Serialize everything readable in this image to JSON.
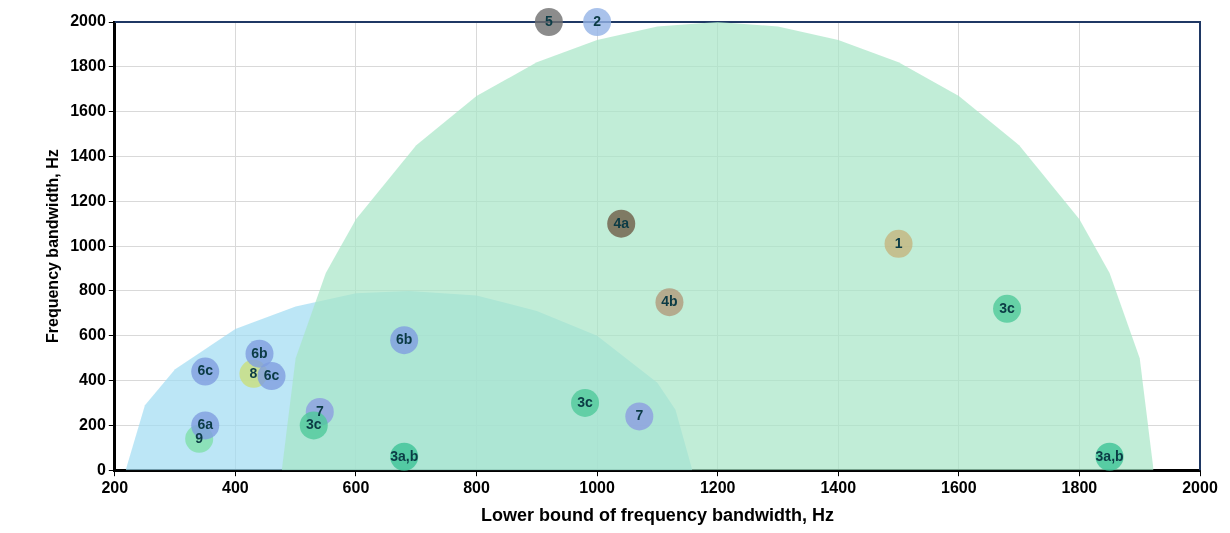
{
  "chart_data": {
    "type": "bubble",
    "xlabel": "Lower bound of frequency bandwidth, Hz",
    "ylabel": "Frequency bandwidth, Hz",
    "xlim": [
      200,
      2000
    ],
    "xticks": [
      200,
      400,
      600,
      800,
      1000,
      1200,
      1400,
      1600,
      1800,
      2000
    ],
    "ylim": [
      0,
      2000
    ],
    "yticks": [
      0,
      200,
      400,
      600,
      800,
      1000,
      1200,
      1400,
      1600,
      1800,
      2000
    ],
    "grid": true,
    "series": [
      {
        "type": "area",
        "color": "#a6e6c6",
        "x": [
          477,
          500,
          550,
          600,
          700,
          800,
          900,
          1000,
          1100,
          1200,
          1300,
          1400,
          1500,
          1600,
          1700,
          1800,
          1850,
          1900,
          1923
        ],
        "values": [
          0,
          500,
          880,
          1120,
          1450,
          1670,
          1820,
          1920,
          1980,
          2000,
          1980,
          1920,
          1820,
          1670,
          1450,
          1120,
          880,
          500,
          0
        ]
      },
      {
        "type": "area",
        "color": "#9fdcf2",
        "x": [
          218,
          250,
          300,
          400,
          500,
          600,
          688,
          800,
          900,
          1000,
          1100,
          1130,
          1158
        ],
        "values": [
          0,
          290,
          450,
          630,
          730,
          790,
          800,
          780,
          710,
          600,
          390,
          270,
          0
        ]
      },
      {
        "name": "1",
        "color": "#c4b47e",
        "x": [
          1500
        ],
        "values": [
          1010
        ],
        "sizes": [
          1
        ]
      },
      {
        "name": "2",
        "color": "#93b3e6",
        "x": [
          1000
        ],
        "values": [
          2000
        ],
        "sizes": [
          1
        ]
      },
      {
        "name": "3a,b",
        "color": "#3cc396",
        "x": [
          680,
          1850
        ],
        "values": [
          60,
          60
        ],
        "sizes": [
          1,
          1
        ]
      },
      {
        "name": "3c",
        "color": "#4fc99a",
        "x": [
          530,
          980,
          1680
        ],
        "values": [
          200,
          300,
          720
        ],
        "sizes": [
          1,
          1,
          1
        ]
      },
      {
        "name": "4a",
        "color": "#6e5d47",
        "x": [
          1040
        ],
        "values": [
          1100
        ],
        "sizes": [
          1
        ]
      },
      {
        "name": "4b",
        "color": "#b09a7c",
        "x": [
          1120
        ],
        "values": [
          750
        ],
        "sizes": [
          1
        ]
      },
      {
        "name": "5",
        "color": "#6f6f6f",
        "x": [
          920
        ],
        "values": [
          2000
        ],
        "sizes": [
          1
        ]
      },
      {
        "name": "6a",
        "color": "#7f9de0",
        "x": [
          350
        ],
        "values": [
          200
        ],
        "sizes": [
          1
        ]
      },
      {
        "name": "6b",
        "color": "#7f9de0",
        "x": [
          440,
          680
        ],
        "values": [
          520,
          580
        ],
        "sizes": [
          1,
          1
        ]
      },
      {
        "name": "6c",
        "color": "#7f9de0",
        "x": [
          350,
          460
        ],
        "values": [
          440,
          420
        ],
        "sizes": [
          1,
          1
        ]
      },
      {
        "name": "7",
        "color": "#8c9ee0",
        "x": [
          540,
          1070
        ],
        "values": [
          260,
          240
        ],
        "sizes": [
          1,
          1
        ]
      },
      {
        "name": "8",
        "color": "#c9df7c",
        "x": [
          430
        ],
        "values": [
          430
        ],
        "sizes": [
          1
        ]
      },
      {
        "name": "9",
        "color": "#80e0aa",
        "x": [
          340
        ],
        "values": [
          140
        ],
        "sizes": [
          1
        ]
      }
    ]
  }
}
